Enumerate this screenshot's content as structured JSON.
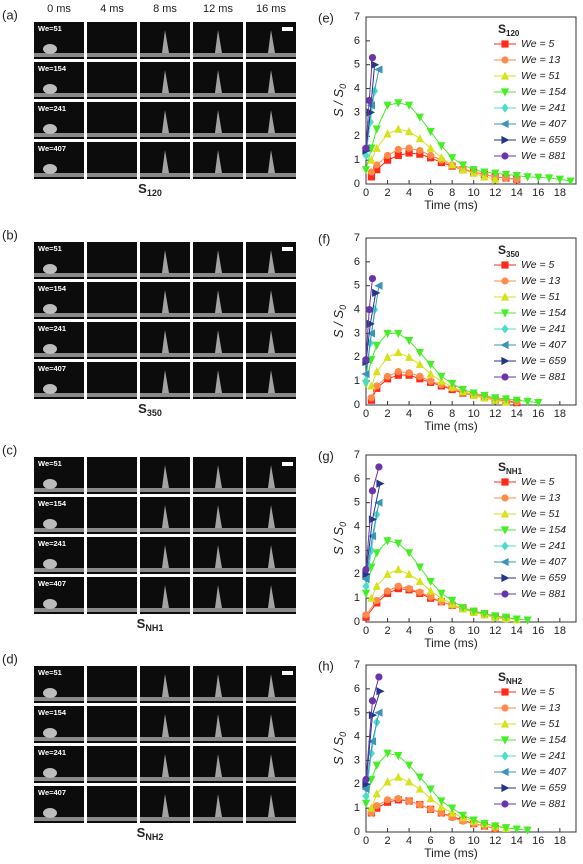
{
  "times": [
    "0 ms",
    "4 ms",
    "8 ms",
    "12 ms",
    "16 ms"
  ],
  "photo_panels": [
    {
      "label": "(a)",
      "rows": [
        "We=51",
        "We=154",
        "We=241",
        "We=407"
      ],
      "caption": "S",
      "caption_subscript": "120"
    },
    {
      "label": "(b)",
      "rows": [
        "We=51",
        "We=154",
        "We=241",
        "We=407"
      ],
      "caption": "S",
      "caption_subscript": "350"
    },
    {
      "label": "(c)",
      "rows": [
        "We=51",
        "We=154",
        "We=241",
        "We=407"
      ],
      "caption": "S",
      "caption_subscript": "NH1"
    },
    {
      "label": "(d)",
      "rows": [
        "We=51",
        "We=154",
        "We=241",
        "We=407"
      ],
      "caption": "S",
      "caption_subscript": "NH2"
    }
  ],
  "chart_data": [
    {
      "type": "line",
      "panel_label": "(e)",
      "title": "S",
      "title_subscript": "120",
      "xlabel": "Time (ms)",
      "ylabel": "S / S",
      "ylabel_subscript": "0",
      "xlim": [
        0,
        19.5
      ],
      "ylim": [
        0,
        7
      ],
      "xticks": [
        0,
        2,
        4,
        6,
        8,
        10,
        12,
        14,
        16,
        18
      ],
      "yticks": [
        0,
        1,
        2,
        3,
        4,
        5,
        6,
        7
      ],
      "series": [
        {
          "name": "We = 5",
          "color": "#ff2a1a",
          "marker": "square",
          "x": [
            0.5,
            1,
            2,
            3,
            4,
            5,
            6,
            7,
            8,
            9,
            10,
            11,
            12,
            13,
            14
          ],
          "values": [
            0.3,
            0.6,
            1.0,
            1.2,
            1.3,
            1.25,
            1.1,
            0.9,
            0.75,
            0.6,
            0.5,
            0.4,
            0.3,
            0.25,
            0.2
          ]
        },
        {
          "name": "We = 13",
          "color": "#ff8a4a",
          "marker": "circle",
          "x": [
            0.5,
            1,
            2,
            3,
            4,
            5,
            6,
            7,
            8,
            9,
            10,
            11,
            12,
            13,
            14
          ],
          "values": [
            0.5,
            0.8,
            1.2,
            1.45,
            1.5,
            1.4,
            1.2,
            1.0,
            0.8,
            0.65,
            0.5,
            0.4,
            0.3,
            0.25,
            0.2
          ]
        },
        {
          "name": "We = 51",
          "color": "#d6e21c",
          "marker": "triangle-up",
          "x": [
            0.5,
            1,
            2,
            3,
            4,
            5,
            6,
            7,
            8,
            9,
            10,
            11,
            12
          ],
          "values": [
            1.0,
            1.5,
            2.1,
            2.3,
            2.2,
            1.9,
            1.5,
            1.1,
            0.8,
            0.6,
            0.45,
            0.3,
            0.2
          ]
        },
        {
          "name": "We = 154",
          "color": "#45ee25",
          "marker": "triangle-down",
          "x": [
            0,
            0.5,
            1,
            2,
            3,
            4,
            5,
            6,
            7,
            8,
            9,
            10,
            11,
            12,
            13,
            14,
            15,
            16,
            17,
            18,
            19
          ],
          "values": [
            0.6,
            1.5,
            2.3,
            3.3,
            3.4,
            3.3,
            2.8,
            2.2,
            1.6,
            1.1,
            0.8,
            0.6,
            0.5,
            0.45,
            0.4,
            0.35,
            0.3,
            0.28,
            0.25,
            0.2,
            0.12
          ]
        },
        {
          "name": "We = 241",
          "color": "#4ddccc",
          "marker": "diamond",
          "x": [
            0,
            0.4,
            0.8
          ],
          "values": [
            1.2,
            2.6,
            3.9
          ]
        },
        {
          "name": "We = 407",
          "color": "#3a96b8",
          "marker": "triangle-left",
          "x": [
            0,
            0.5,
            1.2
          ],
          "values": [
            1.5,
            3.3,
            4.8
          ]
        },
        {
          "name": "We = 659",
          "color": "#23368a",
          "marker": "triangle-right",
          "x": [
            0,
            0.4,
            0.8
          ],
          "values": [
            1.4,
            3.0,
            5.0
          ]
        },
        {
          "name": "We = 881",
          "color": "#6a35a8",
          "marker": "circle",
          "x": [
            0,
            0.3,
            0.6
          ],
          "values": [
            1.5,
            3.5,
            5.3
          ]
        }
      ]
    },
    {
      "type": "line",
      "panel_label": "(f)",
      "title": "S",
      "title_subscript": "350",
      "xlabel": "Time (ms)",
      "ylabel": "S / S",
      "ylabel_subscript": "0",
      "xlim": [
        0,
        19.5
      ],
      "ylim": [
        0,
        7
      ],
      "xticks": [
        0,
        2,
        4,
        6,
        8,
        10,
        12,
        14,
        16,
        18
      ],
      "yticks": [
        0,
        1,
        2,
        3,
        4,
        5,
        6,
        7
      ],
      "series": [
        {
          "name": "We = 5",
          "color": "#ff2a1a",
          "marker": "square",
          "x": [
            0.5,
            1,
            2,
            3,
            4,
            5,
            6,
            7,
            8,
            9,
            10,
            11,
            12,
            13,
            14
          ],
          "values": [
            0.2,
            0.7,
            1.1,
            1.25,
            1.25,
            1.1,
            0.95,
            0.8,
            0.65,
            0.5,
            0.4,
            0.3,
            0.2,
            0.15,
            0.1
          ]
        },
        {
          "name": "We = 13",
          "color": "#ff8a4a",
          "marker": "circle",
          "x": [
            0.5,
            1,
            2,
            3,
            4,
            5,
            6,
            7,
            8,
            9,
            10,
            11,
            12,
            13,
            14
          ],
          "values": [
            0.3,
            0.8,
            1.2,
            1.4,
            1.35,
            1.2,
            1.0,
            0.85,
            0.7,
            0.55,
            0.45,
            0.35,
            0.25,
            0.2,
            0.12
          ]
        },
        {
          "name": "We = 51",
          "color": "#d6e21c",
          "marker": "triangle-up",
          "x": [
            0.5,
            1,
            2,
            3,
            4,
            5,
            6,
            7,
            8,
            9,
            10,
            11,
            12,
            13
          ],
          "values": [
            0.8,
            1.4,
            2.0,
            2.2,
            2.0,
            1.7,
            1.3,
            1.0,
            0.75,
            0.55,
            0.4,
            0.3,
            0.2,
            0.12
          ]
        },
        {
          "name": "We = 154",
          "color": "#45ee25",
          "marker": "triangle-down",
          "x": [
            0,
            0.5,
            1,
            2,
            3,
            4,
            5,
            6,
            7,
            8,
            9,
            10,
            11,
            12,
            13,
            14,
            15,
            16
          ],
          "values": [
            0.9,
            1.9,
            2.5,
            3.0,
            3.0,
            2.7,
            2.2,
            1.7,
            1.2,
            0.9,
            0.65,
            0.5,
            0.4,
            0.3,
            0.25,
            0.2,
            0.15,
            0.1
          ]
        },
        {
          "name": "We = 241",
          "color": "#4ddccc",
          "marker": "diamond",
          "x": [
            0,
            0.4,
            0.8
          ],
          "values": [
            1.0,
            2.6,
            4.0
          ]
        },
        {
          "name": "We = 407",
          "color": "#3a96b8",
          "marker": "triangle-left",
          "x": [
            0,
            0.5,
            1.2
          ],
          "values": [
            1.3,
            3.0,
            5.0
          ]
        },
        {
          "name": "We = 659",
          "color": "#23368a",
          "marker": "triangle-right",
          "x": [
            0,
            0.4,
            0.9
          ],
          "values": [
            1.8,
            3.4,
            4.7
          ]
        },
        {
          "name": "We = 881",
          "color": "#6a35a8",
          "marker": "circle",
          "x": [
            0,
            0.3,
            0.6
          ],
          "values": [
            1.9,
            4.0,
            5.3
          ]
        }
      ]
    },
    {
      "type": "line",
      "panel_label": "(g)",
      "title": "S",
      "title_subscript": "NH1",
      "xlabel": "Time (ms)",
      "ylabel": "S / S",
      "ylabel_subscript": "0",
      "xlim": [
        0,
        19.5
      ],
      "ylim": [
        0,
        7
      ],
      "xticks": [
        0,
        2,
        4,
        6,
        8,
        10,
        12,
        14,
        16,
        18
      ],
      "yticks": [
        0,
        1,
        2,
        3,
        4,
        5,
        6,
        7
      ],
      "series": [
        {
          "name": "We = 5",
          "color": "#ff2a1a",
          "marker": "square",
          "x": [
            0,
            1,
            2,
            3,
            4,
            5,
            6,
            7,
            8,
            9,
            10,
            11,
            12,
            13
          ],
          "values": [
            0.2,
            0.8,
            1.2,
            1.4,
            1.35,
            1.2,
            1.0,
            0.85,
            0.7,
            0.55,
            0.45,
            0.35,
            0.25,
            0.15
          ]
        },
        {
          "name": "We = 13",
          "color": "#ff8a4a",
          "marker": "circle",
          "x": [
            0,
            1,
            2,
            3,
            4,
            5,
            6,
            7,
            8,
            9,
            10,
            11,
            12,
            13
          ],
          "values": [
            0.3,
            0.9,
            1.3,
            1.5,
            1.4,
            1.25,
            1.05,
            0.85,
            0.7,
            0.55,
            0.4,
            0.3,
            0.2,
            0.12
          ]
        },
        {
          "name": "We = 51",
          "color": "#d6e21c",
          "marker": "triangle-up",
          "x": [
            0.5,
            1,
            2,
            3,
            4,
            5,
            6,
            7,
            8,
            9,
            10,
            11,
            12,
            13,
            14
          ],
          "values": [
            1.0,
            1.5,
            2.0,
            2.2,
            2.0,
            1.7,
            1.3,
            1.0,
            0.75,
            0.55,
            0.4,
            0.3,
            0.2,
            0.15,
            0.1
          ]
        },
        {
          "name": "We = 154",
          "color": "#45ee25",
          "marker": "triangle-down",
          "x": [
            0,
            0.5,
            1,
            2,
            3,
            4,
            5,
            6,
            7,
            8,
            9,
            10,
            11,
            12,
            13,
            14,
            15
          ],
          "values": [
            1.2,
            2.3,
            2.9,
            3.4,
            3.3,
            2.9,
            2.3,
            1.7,
            1.2,
            0.9,
            0.6,
            0.45,
            0.35,
            0.25,
            0.2,
            0.12,
            0.08
          ]
        },
        {
          "name": "We = 241",
          "color": "#4ddccc",
          "marker": "diamond",
          "x": [
            0,
            0.5,
            1
          ],
          "values": [
            1.5,
            3.0,
            4.5
          ]
        },
        {
          "name": "We = 407",
          "color": "#3a96b8",
          "marker": "triangle-left",
          "x": [
            0,
            0.6,
            1.2
          ],
          "values": [
            1.8,
            3.6,
            5.0
          ]
        },
        {
          "name": "We = 659",
          "color": "#23368a",
          "marker": "triangle-right",
          "x": [
            0,
            0.6,
            1.3
          ],
          "values": [
            2.0,
            4.3,
            5.8
          ]
        },
        {
          "name": "We = 881",
          "color": "#6a35a8",
          "marker": "circle",
          "x": [
            0,
            0.6,
            1.2
          ],
          "values": [
            2.2,
            5.5,
            6.5
          ]
        }
      ]
    },
    {
      "type": "line",
      "panel_label": "(h)",
      "title": "S",
      "title_subscript": "NH2",
      "xlabel": "Time (ms)",
      "ylabel": "S / S",
      "ylabel_subscript": "0",
      "xlim": [
        0,
        19.5
      ],
      "ylim": [
        0,
        7
      ],
      "xticks": [
        0,
        2,
        4,
        6,
        8,
        10,
        12,
        14,
        16,
        18
      ],
      "yticks": [
        0,
        1,
        2,
        3,
        4,
        5,
        6,
        7
      ],
      "series": [
        {
          "name": "We = 5",
          "color": "#ff2a1a",
          "marker": "square",
          "x": [
            0.5,
            1,
            2,
            3,
            4,
            5,
            6,
            7,
            8,
            9,
            10,
            11,
            12
          ],
          "values": [
            0.8,
            1.0,
            1.25,
            1.35,
            1.3,
            1.15,
            0.95,
            0.8,
            0.65,
            0.5,
            0.35,
            0.25,
            0.15
          ]
        },
        {
          "name": "We = 13",
          "color": "#ff8a4a",
          "marker": "circle",
          "x": [
            0.5,
            1,
            2,
            3,
            4,
            5,
            6,
            7,
            8,
            9,
            10,
            11,
            12
          ],
          "values": [
            0.8,
            1.1,
            1.35,
            1.4,
            1.3,
            1.15,
            0.95,
            0.8,
            0.6,
            0.45,
            0.35,
            0.25,
            0.15
          ]
        },
        {
          "name": "We = 51",
          "color": "#d6e21c",
          "marker": "triangle-up",
          "x": [
            0.5,
            1,
            2,
            3,
            4,
            5,
            6,
            7,
            8,
            9,
            10,
            11,
            12,
            13
          ],
          "values": [
            1.0,
            1.6,
            2.1,
            2.3,
            2.1,
            1.8,
            1.4,
            1.05,
            0.8,
            0.6,
            0.45,
            0.35,
            0.25,
            0.15
          ]
        },
        {
          "name": "We = 154",
          "color": "#45ee25",
          "marker": "triangle-down",
          "x": [
            0,
            0.5,
            1,
            2,
            3,
            4,
            5,
            6,
            7,
            8,
            9,
            10,
            11,
            12,
            13,
            14,
            15
          ],
          "values": [
            1.2,
            2.2,
            2.8,
            3.3,
            3.2,
            2.8,
            2.3,
            1.8,
            1.3,
            1.0,
            0.7,
            0.5,
            0.35,
            0.25,
            0.18,
            0.12,
            0.08
          ]
        },
        {
          "name": "We = 241",
          "color": "#4ddccc",
          "marker": "diamond",
          "x": [
            0,
            0.5,
            1
          ],
          "values": [
            1.5,
            3.3,
            4.6
          ]
        },
        {
          "name": "We = 407",
          "color": "#3a96b8",
          "marker": "triangle-left",
          "x": [
            0,
            0.6,
            1.2
          ],
          "values": [
            1.8,
            3.8,
            5.0
          ]
        },
        {
          "name": "We = 659",
          "color": "#23368a",
          "marker": "triangle-right",
          "x": [
            0,
            0.6,
            1.3
          ],
          "values": [
            2.0,
            4.9,
            5.9
          ]
        },
        {
          "name": "We = 881",
          "color": "#6a35a8",
          "marker": "circle",
          "x": [
            0,
            0.6,
            1.2
          ],
          "values": [
            2.2,
            5.5,
            6.5
          ]
        }
      ]
    }
  ]
}
